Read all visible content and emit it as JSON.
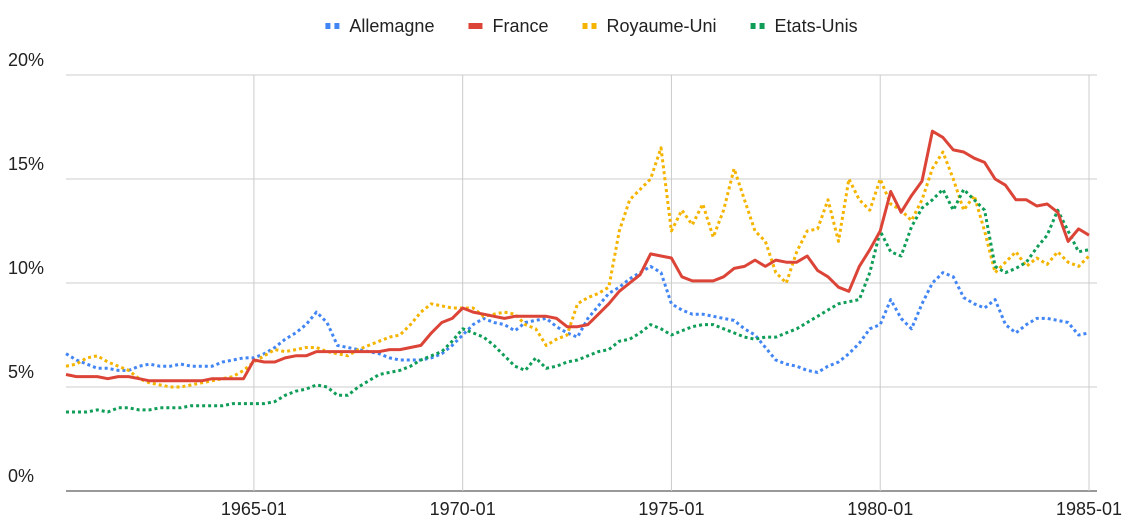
{
  "chart_data": {
    "type": "line",
    "legend": "top",
    "grid": true,
    "categories": [
      "1960-07",
      "1960-10",
      "1961-01",
      "1961-04",
      "1961-07",
      "1961-10",
      "1962-01",
      "1962-04",
      "1962-07",
      "1962-10",
      "1963-01",
      "1963-04",
      "1963-07",
      "1963-10",
      "1964-01",
      "1964-04",
      "1964-07",
      "1964-10",
      "1965-01",
      "1965-04",
      "1965-07",
      "1965-10",
      "1966-01",
      "1966-04",
      "1966-07",
      "1966-10",
      "1967-01",
      "1967-04",
      "1967-07",
      "1967-10",
      "1968-01",
      "1968-04",
      "1968-07",
      "1968-10",
      "1969-01",
      "1969-04",
      "1969-07",
      "1969-10",
      "1970-01",
      "1970-04",
      "1970-07",
      "1970-10",
      "1971-01",
      "1971-04",
      "1971-07",
      "1971-10",
      "1972-01",
      "1972-04",
      "1972-07",
      "1972-10",
      "1973-01",
      "1973-04",
      "1973-07",
      "1973-10",
      "1974-01",
      "1974-04",
      "1974-07",
      "1974-10",
      "1975-01",
      "1975-04",
      "1975-07",
      "1975-10",
      "1976-01",
      "1976-04",
      "1976-07",
      "1976-10",
      "1977-01",
      "1977-04",
      "1977-07",
      "1977-10",
      "1978-01",
      "1978-04",
      "1978-07",
      "1978-10",
      "1979-01",
      "1979-04",
      "1979-07",
      "1979-10",
      "1980-01",
      "1980-04",
      "1980-07",
      "1980-10",
      "1981-01",
      "1981-04",
      "1981-07",
      "1981-10",
      "1982-01",
      "1982-04",
      "1982-07",
      "1982-10",
      "1983-01",
      "1983-04",
      "1983-07",
      "1983-10",
      "1984-01",
      "1984-04",
      "1984-07",
      "1984-10",
      "1985-01"
    ],
    "xticks": [
      "1965-01",
      "1970-01",
      "1975-01",
      "1980-01",
      "1985-01"
    ],
    "ylim": [
      0,
      20
    ],
    "yticks": [
      {
        "value": 0,
        "label": "0%"
      },
      {
        "value": 5,
        "label": "5%"
      },
      {
        "value": 10,
        "label": "10%"
      },
      {
        "value": 15,
        "label": "15%"
      },
      {
        "value": 20,
        "label": "20%"
      }
    ],
    "series": [
      {
        "name": "Allemagne",
        "color": "#4285f4",
        "style": "dotted",
        "values": [
          6.6,
          6.3,
          6.1,
          5.9,
          5.9,
          5.8,
          5.8,
          6.0,
          6.1,
          6.0,
          6.0,
          6.1,
          6.0,
          6.0,
          6.0,
          6.2,
          6.3,
          6.4,
          6.4,
          6.6,
          6.9,
          7.3,
          7.6,
          8.0,
          8.6,
          8.1,
          7.0,
          6.9,
          6.8,
          6.7,
          6.6,
          6.4,
          6.3,
          6.3,
          6.3,
          6.4,
          6.6,
          7.0,
          7.5,
          8.0,
          8.3,
          8.1,
          8.0,
          7.7,
          8.1,
          8.2,
          8.3,
          7.9,
          7.6,
          7.4,
          8.3,
          8.9,
          9.5,
          9.8,
          10.2,
          10.5,
          10.8,
          10.5,
          9.0,
          8.7,
          8.5,
          8.5,
          8.4,
          8.3,
          8.2,
          7.8,
          7.5,
          6.9,
          6.3,
          6.1,
          6.0,
          5.8,
          5.7,
          6.0,
          6.2,
          6.6,
          7.1,
          7.8,
          8.0,
          9.2,
          8.3,
          7.8,
          9.0,
          10.0,
          10.5,
          10.3,
          9.3,
          9.0,
          8.8,
          9.2,
          8.0,
          7.6,
          8.0,
          8.3,
          8.3,
          8.2,
          8.1,
          7.5,
          7.6
        ]
      },
      {
        "name": "France",
        "color": "#db4437",
        "style": "solid",
        "values": [
          5.6,
          5.5,
          5.5,
          5.5,
          5.4,
          5.5,
          5.5,
          5.4,
          5.3,
          5.3,
          5.3,
          5.3,
          5.3,
          5.3,
          5.4,
          5.4,
          5.4,
          5.4,
          6.3,
          6.2,
          6.2,
          6.4,
          6.5,
          6.5,
          6.7,
          6.7,
          6.7,
          6.7,
          6.7,
          6.7,
          6.7,
          6.8,
          6.8,
          6.9,
          7.0,
          7.6,
          8.1,
          8.3,
          8.8,
          8.6,
          8.5,
          8.4,
          8.3,
          8.4,
          8.4,
          8.4,
          8.4,
          8.3,
          7.9,
          7.9,
          8.0,
          8.5,
          9.0,
          9.6,
          10.0,
          10.4,
          11.4,
          11.3,
          11.2,
          10.3,
          10.1,
          10.1,
          10.1,
          10.3,
          10.7,
          10.8,
          11.1,
          10.8,
          11.1,
          11.0,
          11.0,
          11.3,
          10.6,
          10.3,
          9.8,
          9.6,
          10.8,
          11.6,
          12.5,
          14.4,
          13.4,
          14.2,
          14.9,
          17.3,
          17.0,
          16.4,
          16.3,
          16.0,
          15.8,
          15.0,
          14.7,
          14.0,
          14.0,
          13.7,
          13.8,
          13.4,
          12.0,
          12.6,
          12.3
        ]
      },
      {
        "name": "Royaume-Uni",
        "color": "#f4b400",
        "style": "dotted",
        "values": [
          6.0,
          6.1,
          6.4,
          6.5,
          6.2,
          6.0,
          5.8,
          5.4,
          5.2,
          5.1,
          5.0,
          5.0,
          5.1,
          5.2,
          5.3,
          5.4,
          5.5,
          5.8,
          6.2,
          6.5,
          6.8,
          6.7,
          6.8,
          6.9,
          6.9,
          6.7,
          6.6,
          6.5,
          6.8,
          7.0,
          7.2,
          7.4,
          7.5,
          8.0,
          8.6,
          9.0,
          8.9,
          8.8,
          8.8,
          8.8,
          8.4,
          8.5,
          8.6,
          8.5,
          8.0,
          7.8,
          7.0,
          7.3,
          7.5,
          9.0,
          9.3,
          9.5,
          9.8,
          12.5,
          14.0,
          14.5,
          15.0,
          16.5,
          12.5,
          13.5,
          12.8,
          13.8,
          12.2,
          13.5,
          15.5,
          14.0,
          12.5,
          12.0,
          10.5,
          10.0,
          11.5,
          12.5,
          12.6,
          14.0,
          12.0,
          15.0,
          14.0,
          13.5,
          15.0,
          13.8,
          13.5,
          13.0,
          14.0,
          15.5,
          16.3,
          15.0,
          13.5,
          14.2,
          12.5,
          10.5,
          11.0,
          11.5,
          10.8,
          11.2,
          10.9,
          11.5,
          11.0,
          10.8,
          11.3
        ]
      },
      {
        "name": "Etats-Unis",
        "color": "#0f9d58",
        "style": "dotted",
        "values": [
          3.8,
          3.8,
          3.8,
          3.9,
          3.8,
          4.0,
          4.0,
          3.9,
          3.9,
          4.0,
          4.0,
          4.0,
          4.1,
          4.1,
          4.1,
          4.1,
          4.2,
          4.2,
          4.2,
          4.2,
          4.3,
          4.6,
          4.8,
          4.9,
          5.1,
          5.0,
          4.6,
          4.6,
          5.0,
          5.3,
          5.6,
          5.7,
          5.8,
          6.0,
          6.3,
          6.5,
          6.7,
          7.2,
          7.8,
          7.6,
          7.4,
          7.0,
          6.5,
          6.0,
          5.8,
          6.4,
          5.9,
          6.0,
          6.2,
          6.3,
          6.5,
          6.7,
          6.8,
          7.2,
          7.3,
          7.6,
          8.0,
          7.8,
          7.5,
          7.7,
          7.9,
          8.0,
          8.0,
          7.8,
          7.6,
          7.4,
          7.3,
          7.4,
          7.4,
          7.6,
          7.8,
          8.1,
          8.4,
          8.7,
          9.0,
          9.1,
          9.2,
          10.5,
          12.5,
          11.5,
          11.3,
          12.7,
          13.6,
          14.0,
          14.5,
          13.5,
          14.5,
          14.0,
          13.5,
          10.8,
          10.5,
          10.7,
          11.0,
          11.7,
          12.3,
          13.5,
          12.5,
          11.5,
          11.6
        ]
      }
    ]
  }
}
